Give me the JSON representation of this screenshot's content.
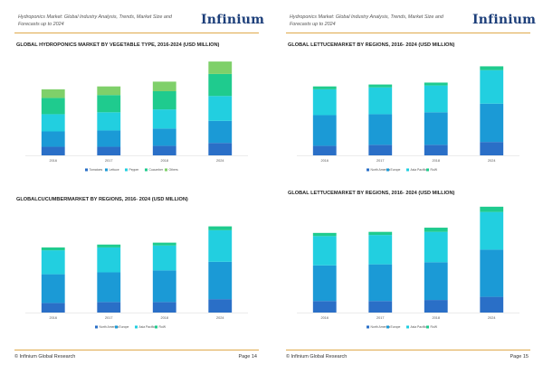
{
  "header_text": "Hydroponics Market: Global Industry Analysis, Trends, Market Size and Forecasts up to 2024",
  "brand": "Infinium",
  "colors": {
    "dark_blue": "#2a6fc7",
    "blue": "#1b9ad6",
    "cyan": "#22cfe0",
    "green_teal": "#1fcb8e",
    "light_green": "#7fd06a",
    "rule": "#e0a94a"
  },
  "pages": [
    {
      "footer_left": "© Infinium Global Research",
      "footer_right": "Page 14",
      "charts": [
        {
          "title": "GLOBAL HYDROPONICS MARKET BY VEGETABLE TYPE, 2016-2024 (USD MILLION)",
          "chart_data": {
            "type": "bar",
            "categories": [
              "2016",
              "2017",
              "2018",
              "2024"
            ],
            "ylim": [
              0,
              100
            ],
            "series": [
              {
                "name": "Tomatoes",
                "color": "#2a6fc7",
                "values": [
                  9,
                  9,
                  10,
                  13
                ]
              },
              {
                "name": "Lettuce",
                "color": "#1b9ad6",
                "values": [
                  16,
                  17,
                  18,
                  23
                ]
              },
              {
                "name": "Pepper",
                "color": "#22cfe0",
                "values": [
                  18,
                  19,
                  20,
                  26
                ]
              },
              {
                "name": "Cucumber",
                "color": "#1fcb8e",
                "values": [
                  17,
                  18,
                  19,
                  23
                ]
              },
              {
                "name": "Others",
                "color": "#7fd06a",
                "values": [
                  9,
                  9,
                  10,
                  13
                ]
              }
            ]
          }
        },
        {
          "title": "GLOBALCUCUMBERMARKET BY REGIONS, 2016- 2024 (USD MILLION)",
          "chart_data": {
            "type": "bar",
            "categories": [
              "2016",
              "2017",
              "2018",
              "2024"
            ],
            "ylim": [
              0,
              100
            ],
            "series": [
              {
                "name": "North America",
                "color": "#2a6fc7",
                "values": [
                  10,
                  11,
                  11,
                  14
                ]
              },
              {
                "name": "Europe",
                "color": "#1b9ad6",
                "values": [
                  30,
                  31,
                  33,
                  39
                ]
              },
              {
                "name": "Asia Pacific",
                "color": "#22cfe0",
                "values": [
                  25,
                  26,
                  26,
                  33
                ]
              },
              {
                "name": "RoW",
                "color": "#1fcb8e",
                "values": [
                  3,
                  3,
                  3,
                  4
                ]
              }
            ]
          }
        }
      ]
    },
    {
      "footer_left": "© Infinium Global Research",
      "footer_right": "Page 15",
      "charts": [
        {
          "title": "GLOBAL LETTUCEMARKET BY REGIONS, 2016- 2024 (USD MILLION)",
          "chart_data": {
            "type": "bar",
            "categories": [
              "2016",
              "2017",
              "2018",
              "2024"
            ],
            "ylim": [
              0,
              100
            ],
            "series": [
              {
                "name": "North America",
                "color": "#2a6fc7",
                "values": [
                  10,
                  11,
                  11,
                  14
                ]
              },
              {
                "name": "Europe",
                "color": "#1b9ad6",
                "values": [
                  32,
                  32,
                  34,
                  40
                ]
              },
              {
                "name": "Asia Pacific",
                "color": "#22cfe0",
                "values": [
                  27,
                  28,
                  28,
                  35
                ]
              },
              {
                "name": "RoW",
                "color": "#1fcb8e",
                "values": [
                  3,
                  3,
                  3,
                  4
                ]
              }
            ]
          }
        },
        {
          "title": "GLOBAL LETTUCEMARKET BY REGIONS, 2016- 2024 (USD MILLION)",
          "chart_data": {
            "type": "bar",
            "categories": [
              "2016",
              "2017",
              "2018",
              "2024"
            ],
            "ylim": [
              0,
              100
            ],
            "series": [
              {
                "name": "North America",
                "color": "#2a6fc7",
                "values": [
                  11,
                  11,
                  12,
                  15
                ]
              },
              {
                "name": "Europe",
                "color": "#1b9ad6",
                "values": [
                  34,
                  35,
                  36,
                  45
                ]
              },
              {
                "name": "Asia Pacific",
                "color": "#22cfe0",
                "values": [
                  28,
                  28,
                  29,
                  36
                ]
              },
              {
                "name": "RoW",
                "color": "#1fcb8e",
                "values": [
                  3,
                  3,
                  4,
                  5
                ]
              }
            ]
          }
        }
      ]
    }
  ]
}
